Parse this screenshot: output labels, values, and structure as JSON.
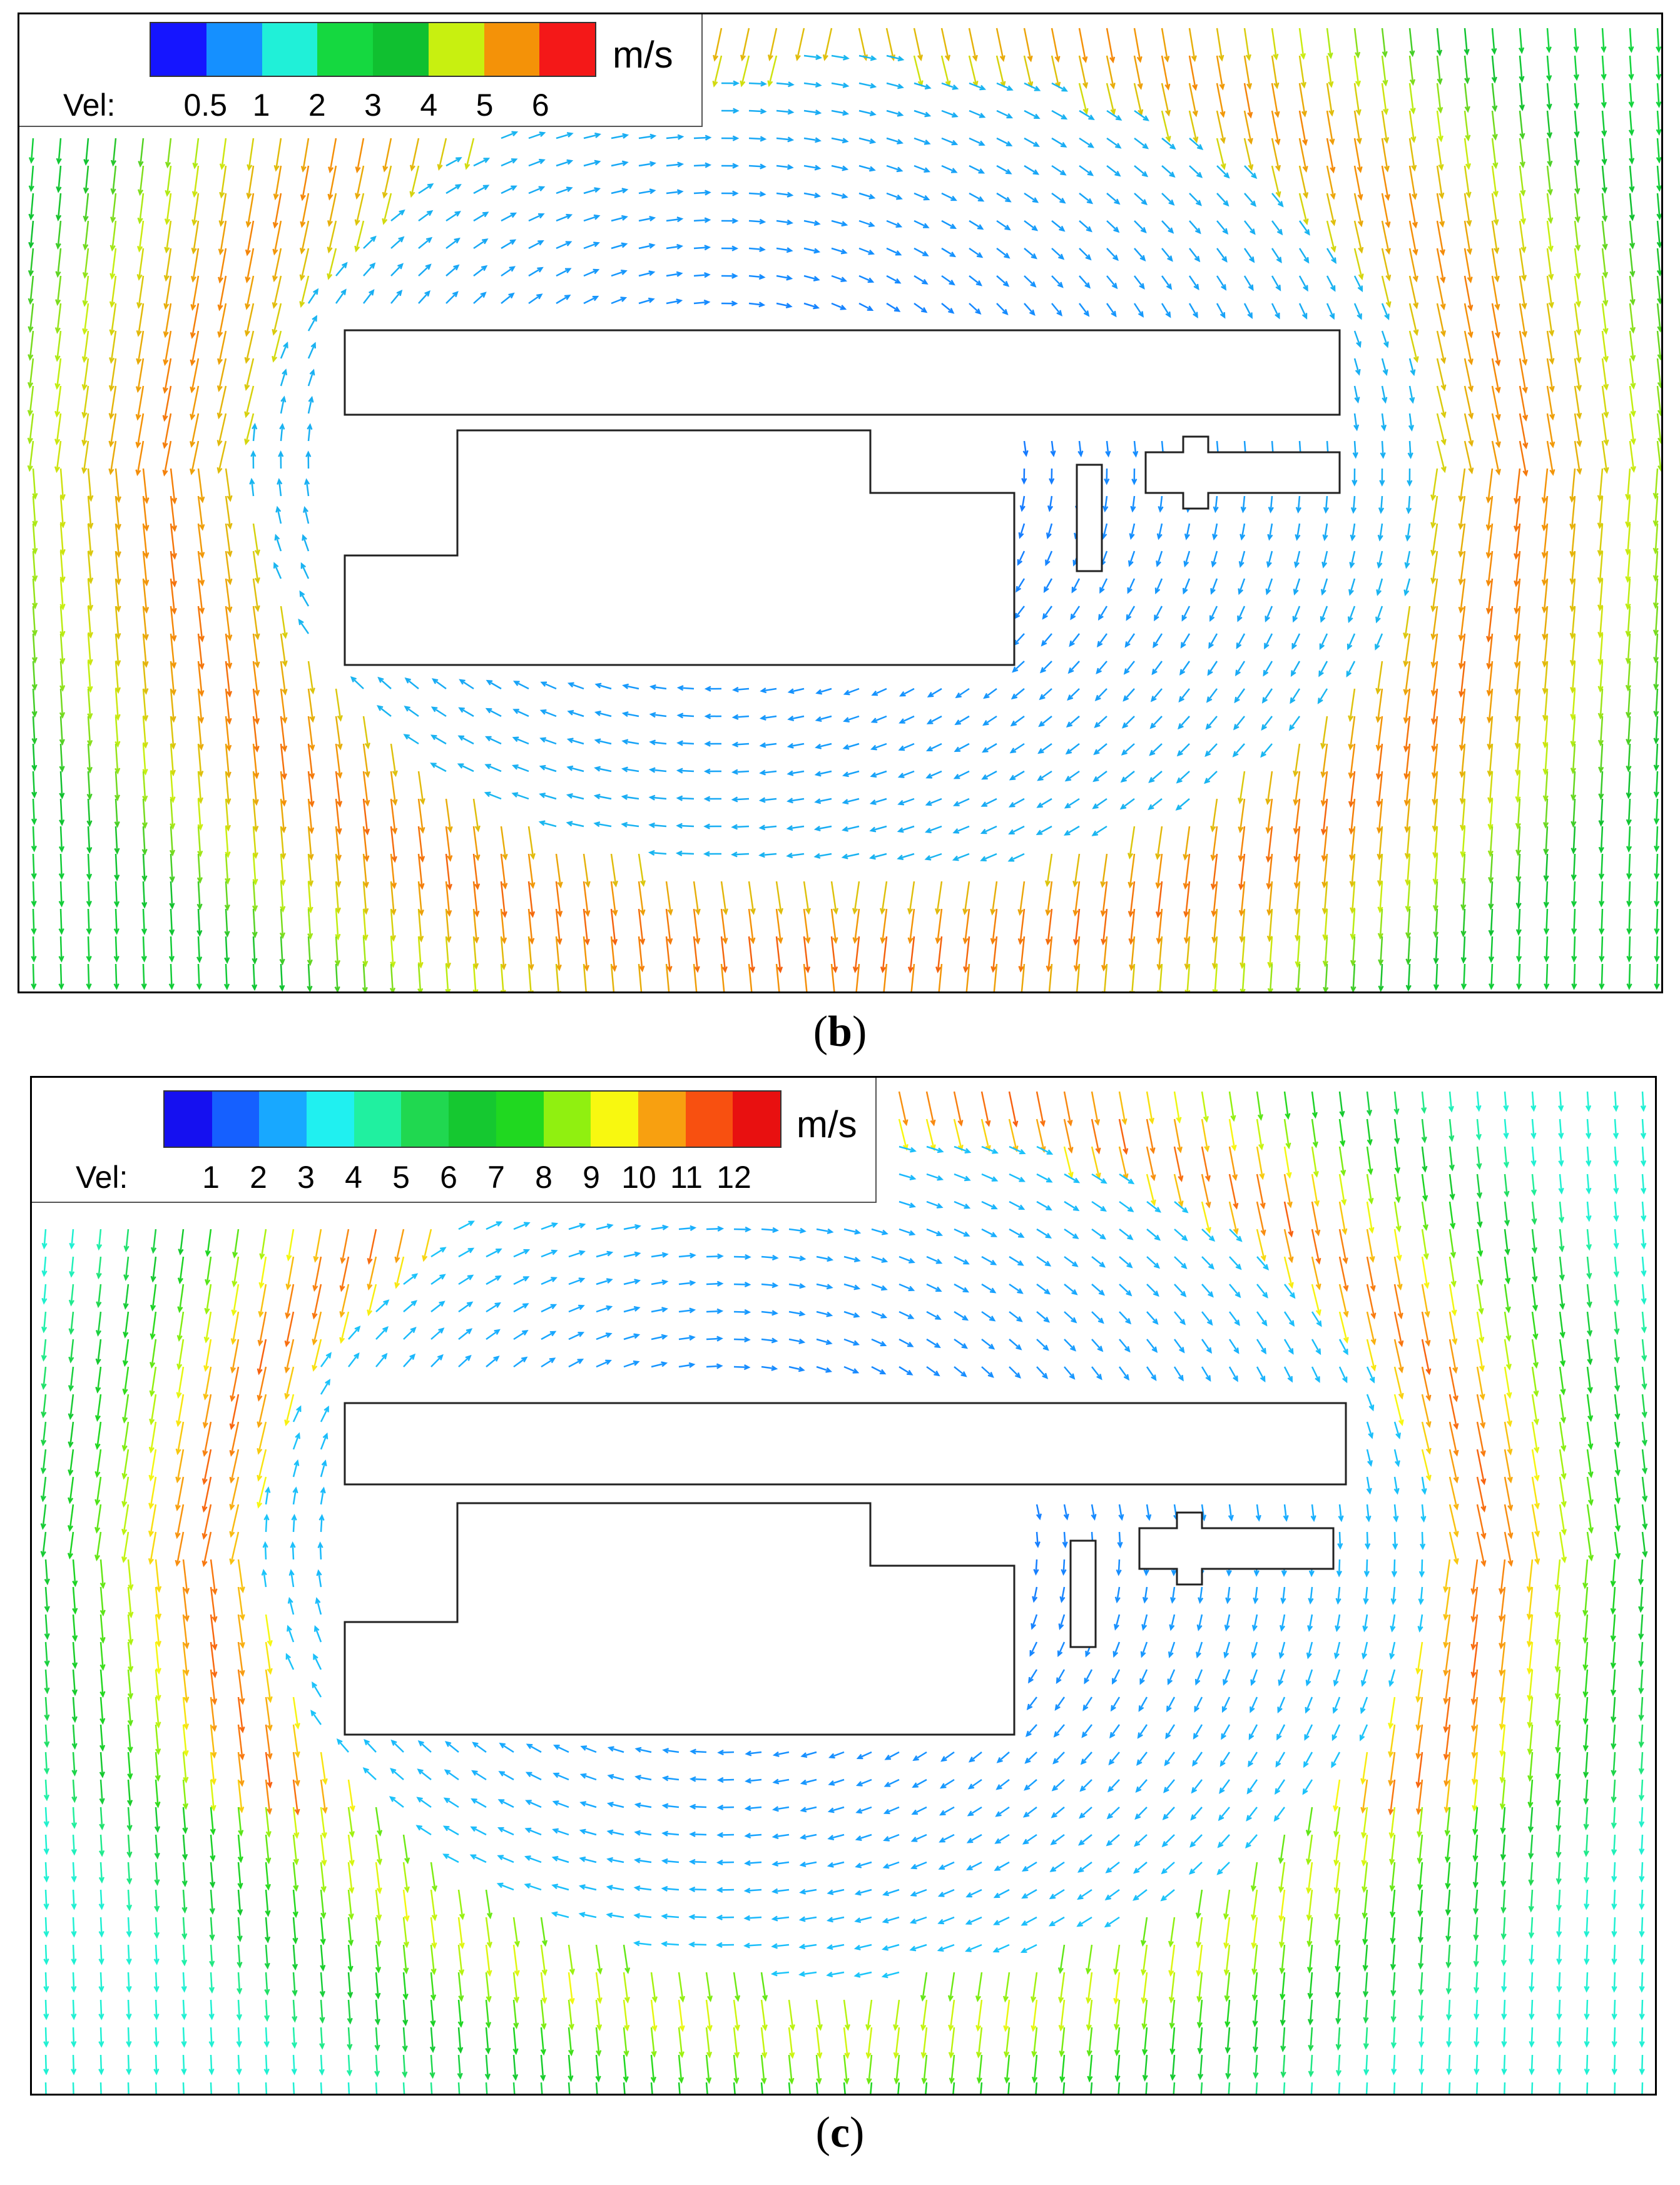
{
  "figures": [
    {
      "caption_open": "(",
      "caption_label": "b",
      "caption_close": ")",
      "legend": {
        "title": "Vel:",
        "unit": "m/s",
        "ticks": [
          "0.5",
          "1",
          "2",
          "3",
          "4",
          "5",
          "6"
        ],
        "colors": [
          "#1515ff",
          "#1590ff",
          "#20f0d8",
          "#15d840",
          "#10c030",
          "#c8f010",
          "#f49208",
          "#f41818"
        ]
      }
    },
    {
      "caption_open": "(",
      "caption_label": "c",
      "caption_close": ")",
      "legend": {
        "title": "Vel:",
        "unit": "m/s",
        "ticks": [
          "1",
          "2",
          "3",
          "4",
          "5",
          "6",
          "7",
          "8",
          "9",
          "10",
          "11",
          "12"
        ],
        "colors": [
          "#1510f0",
          "#1560ff",
          "#18a8ff",
          "#20f0f0",
          "#20f0a0",
          "#20d850",
          "#15c830",
          "#20d820",
          "#90f010",
          "#f8f810",
          "#f8a010",
          "#f85010",
          "#e81010"
        ]
      }
    }
  ]
}
